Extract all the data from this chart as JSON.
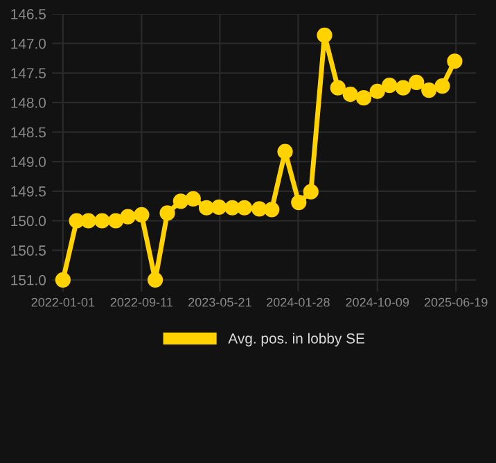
{
  "chart_data": {
    "type": "line",
    "x": [
      "2022-01-01",
      "2022-02-14",
      "2022-03-24",
      "2022-05-07",
      "2022-06-20",
      "2022-07-29",
      "2022-09-11",
      "2022-10-25",
      "2022-12-03",
      "2023-01-15",
      "2023-02-24",
      "2023-04-08",
      "2023-05-18",
      "2023-06-30",
      "2023-08-08",
      "2023-09-25",
      "2023-11-04",
      "2023-12-17",
      "2024-01-30",
      "2024-03-09",
      "2024-04-22",
      "2024-06-04",
      "2024-07-14",
      "2024-08-26",
      "2024-10-09",
      "2024-11-17",
      "2024-12-31",
      "2025-02-12",
      "2025-03-24",
      "2025-05-06",
      "2025-06-15"
    ],
    "series": [
      {
        "name": "Avg. pos. in lobby SE",
        "color": "#ffd200",
        "values": [
          151.0,
          150.0,
          150.0,
          150.0,
          150.0,
          149.93,
          149.9,
          151.0,
          149.87,
          149.67,
          149.63,
          149.78,
          149.77,
          149.78,
          149.78,
          149.8,
          149.81,
          148.83,
          149.69,
          149.51,
          146.86,
          147.75,
          147.86,
          147.92,
          147.81,
          147.71,
          147.75,
          147.66,
          147.79,
          147.72,
          147.3
        ]
      }
    ],
    "xlim": [
      "2021-11-27",
      "2025-08-23"
    ],
    "xticks": [
      {
        "value": "2022-01-01",
        "label": "2022-01-01"
      },
      {
        "value": "2022-09-11",
        "label": "2022-09-11"
      },
      {
        "value": "2023-05-21",
        "label": "2023-05-21"
      },
      {
        "value": "2024-01-28",
        "label": "2024-01-28"
      },
      {
        "value": "2024-10-09",
        "label": "2024-10-09"
      },
      {
        "value": "2025-06-19",
        "label": "2025-06-19"
      }
    ],
    "ylim": [
      151.2,
      146.5
    ],
    "yticks": [
      {
        "value": 146.5,
        "label": "146.5"
      },
      {
        "value": 147.0,
        "label": "147.0"
      },
      {
        "value": 147.5,
        "label": "147.5"
      },
      {
        "value": 148.0,
        "label": "148.0"
      },
      {
        "value": 148.5,
        "label": "148.5"
      },
      {
        "value": 149.0,
        "label": "149.0"
      },
      {
        "value": 149.5,
        "label": "149.5"
      },
      {
        "value": 150.0,
        "label": "150.0"
      },
      {
        "value": 150.5,
        "label": "150.5"
      },
      {
        "value": 151.0,
        "label": "151.0"
      }
    ],
    "grid": true,
    "legend": "bottom",
    "marker": "circle",
    "line_style": "solid"
  }
}
